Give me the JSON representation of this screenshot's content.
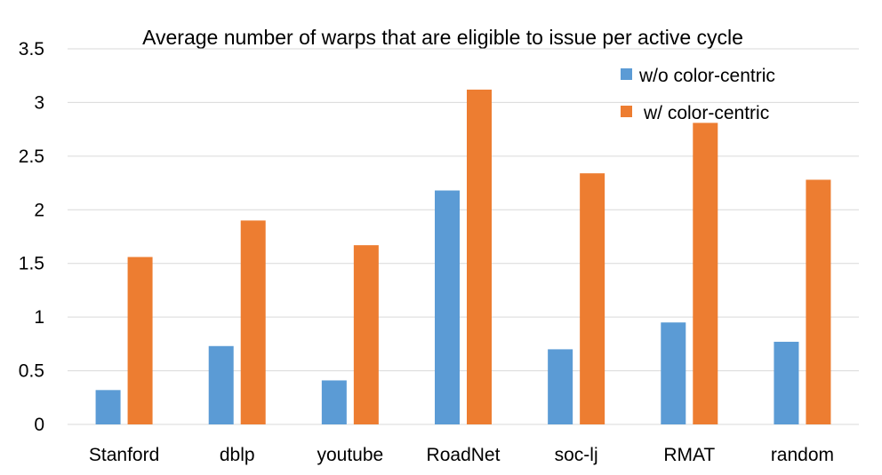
{
  "chart_data": {
    "type": "bar",
    "title": "Average number of warps that are eligible to issue per active cycle",
    "xlabel": "",
    "ylabel": "",
    "categories": [
      "Stanford",
      "dblp",
      "youtube",
      "RoadNet",
      "soc-lj",
      "RMAT",
      "random"
    ],
    "series": [
      {
        "name": "w/o color-centric",
        "values": [
          0.32,
          0.73,
          0.41,
          2.18,
          0.7,
          0.95,
          0.77
        ],
        "color": "#5B9BD5"
      },
      {
        "name": "w/ color-centric",
        "values": [
          1.56,
          1.9,
          1.67,
          3.12,
          2.34,
          2.81,
          2.28
        ],
        "color": "#ED7D31"
      }
    ],
    "ylim": [
      0,
      3.5
    ],
    "yticks": [
      "0",
      "0.5",
      "1",
      "1.5",
      "2",
      "2.5",
      "3",
      "3.5"
    ],
    "grid": true,
    "legend_position": "top-right"
  }
}
